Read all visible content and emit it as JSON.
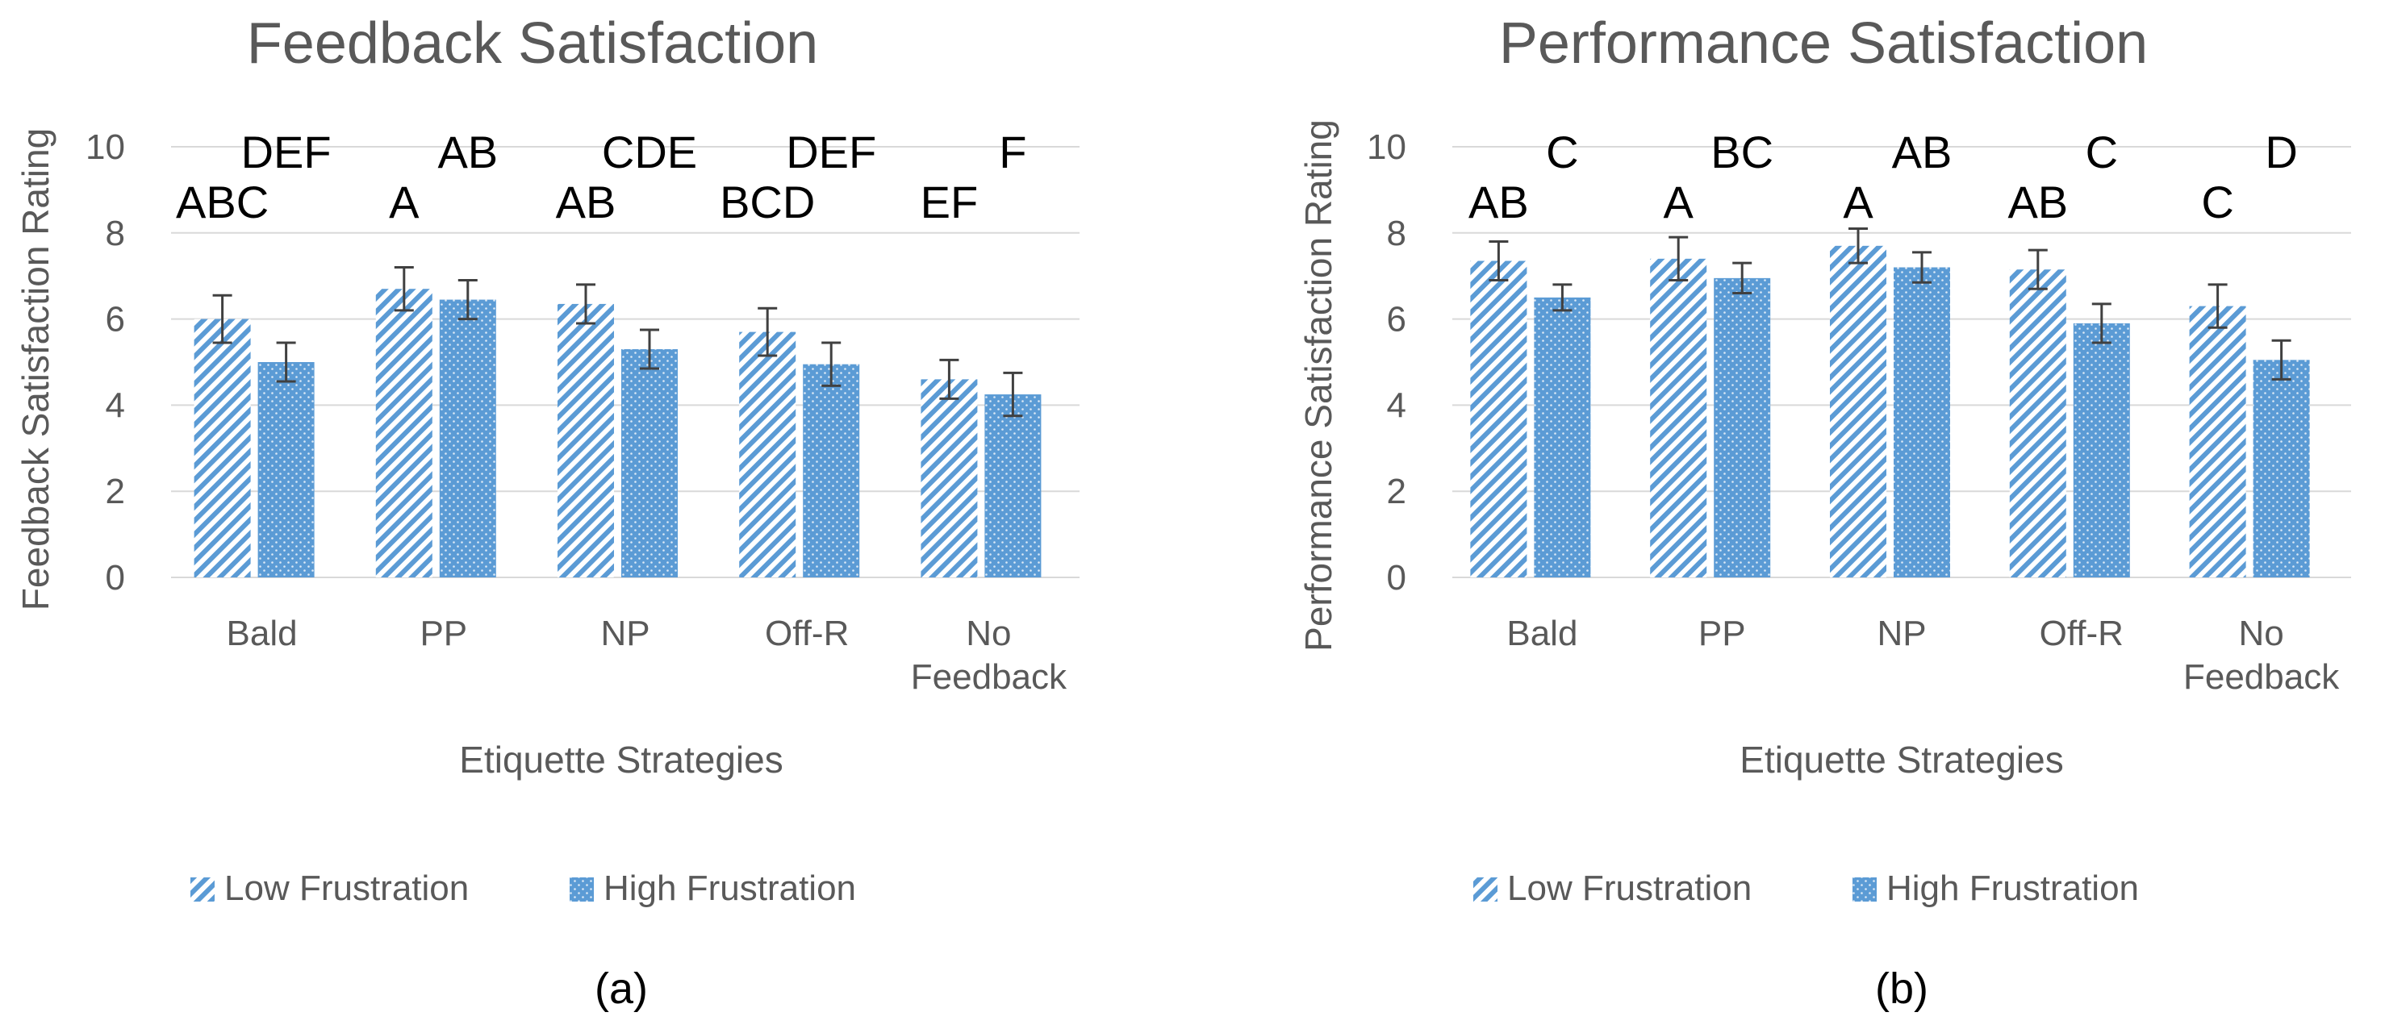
{
  "colors": {
    "bar_fill": "#5b9bd5",
    "bar_light": "#ffffff",
    "grid": "#d9d9d9",
    "axis_text": "#595959",
    "letters": "#000000",
    "error_bar": "#404040"
  },
  "series_legend": [
    "Low Frustration",
    "High Frustration"
  ],
  "chart_data": [
    {
      "type": "bar",
      "panel_label": "(a)",
      "title": "Feedback Satisfaction",
      "xlabel": "Etiquette Strategies",
      "ylabel": "Feedback Satisfaction Rating",
      "categories": [
        [
          "Bald"
        ],
        [
          "PP"
        ],
        [
          "NP"
        ],
        [
          "Off-R"
        ],
        [
          "No",
          "Feedback"
        ]
      ],
      "ylim": [
        0,
        10
      ],
      "yticks": [
        0,
        2,
        4,
        6,
        8,
        10
      ],
      "grid": true,
      "legend_position": "bottom",
      "series": [
        {
          "name": "Low Frustration",
          "pattern": "diagonal-stripes",
          "values": [
            6.0,
            6.7,
            6.35,
            5.7,
            4.6
          ],
          "error": [
            0.55,
            0.5,
            0.45,
            0.55,
            0.45
          ],
          "letters": [
            "ABC",
            "A",
            "AB",
            "BCD",
            "EF"
          ]
        },
        {
          "name": "High Frustration",
          "pattern": "dots",
          "values": [
            5.0,
            6.45,
            5.3,
            4.95,
            4.25
          ],
          "error": [
            0.45,
            0.45,
            0.45,
            0.5,
            0.5
          ],
          "letters": [
            "DEF",
            "AB",
            "CDE",
            "DEF",
            "F"
          ]
        }
      ]
    },
    {
      "type": "bar",
      "panel_label": "(b)",
      "title": "Performance Satisfaction",
      "xlabel": "Etiquette Strategies",
      "ylabel": "Performance Satisfaction Rating",
      "categories": [
        [
          "Bald"
        ],
        [
          "PP"
        ],
        [
          "NP"
        ],
        [
          "Off-R"
        ],
        [
          "No",
          "Feedback"
        ]
      ],
      "ylim": [
        0,
        10
      ],
      "yticks": [
        0,
        2,
        4,
        6,
        8,
        10
      ],
      "grid": true,
      "legend_position": "bottom",
      "series": [
        {
          "name": "Low Frustration",
          "pattern": "diagonal-stripes",
          "values": [
            7.35,
            7.4,
            7.7,
            7.15,
            6.3
          ],
          "error": [
            0.45,
            0.5,
            0.4,
            0.45,
            0.5
          ],
          "letters": [
            "AB",
            "A",
            "A",
            "AB",
            "C"
          ]
        },
        {
          "name": "High Frustration",
          "pattern": "dots",
          "values": [
            6.5,
            6.95,
            7.2,
            5.9,
            5.05
          ],
          "error": [
            0.3,
            0.35,
            0.35,
            0.45,
            0.45
          ],
          "letters": [
            "C",
            "BC",
            "AB",
            "C",
            "D"
          ]
        }
      ]
    }
  ]
}
